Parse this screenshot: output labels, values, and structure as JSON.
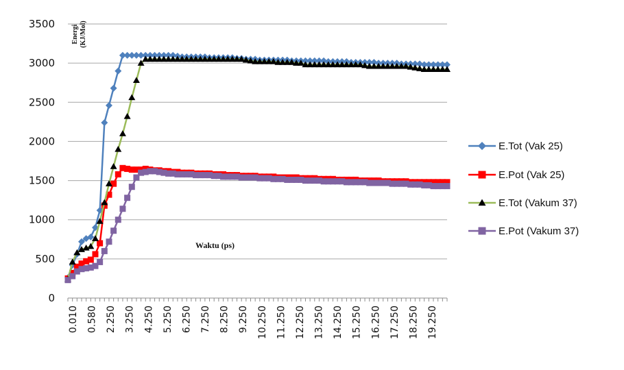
{
  "chart_data": {
    "type": "line",
    "ylabel_lines": [
      "Energi",
      "(KJ/Mol)"
    ],
    "xlabel": "Waktu (ps)",
    "ylim": [
      0,
      3500
    ],
    "yticks": [
      0,
      500,
      1000,
      1500,
      2000,
      2500,
      3000,
      3500
    ],
    "x_tick_labels": [
      "0.010",
      "0.580",
      "2.250",
      "3.250",
      "4.250",
      "5.250",
      "6.250",
      "7.250",
      "8.250",
      "9.250",
      "10.250",
      "11.250",
      "12.250",
      "13.250",
      "14.250",
      "15.250",
      "16.250",
      "17.250",
      "18.250",
      "19.250"
    ],
    "grid": "horizontal",
    "legend_position": "right",
    "series": [
      {
        "name": "E.Tot (Vak 25)",
        "color": "#4f81bd",
        "marker": "diamond",
        "values": [
          260,
          420,
          560,
          720,
          760,
          780,
          900,
          1120,
          2240,
          2460,
          2680,
          2900,
          3100,
          3100,
          3100,
          3100,
          3100,
          3100,
          3100,
          3100,
          3100,
          3100,
          3100,
          3100,
          3090,
          3080,
          3080,
          3080,
          3080,
          3080,
          3080,
          3070,
          3070,
          3070,
          3070,
          3070,
          3070,
          3060,
          3060,
          3050,
          3050,
          3050,
          3040,
          3040,
          3040,
          3040,
          3040,
          3040,
          3040,
          3030,
          3030,
          3030,
          3030,
          3030,
          3030,
          3030,
          3030,
          3020,
          3020,
          3020,
          3020,
          3020,
          3010,
          3010,
          3010,
          3010,
          3010,
          3010,
          3000,
          3000,
          3000,
          3000,
          3000,
          2990,
          2990,
          2990,
          2990,
          2990,
          2980,
          2980,
          2980,
          2980,
          2980,
          2980
        ]
      },
      {
        "name": "E.Pot (Vak 25)",
        "color": "#ff0000",
        "marker": "square",
        "values": [
          250,
          320,
          400,
          440,
          470,
          490,
          560,
          700,
          1180,
          1320,
          1460,
          1580,
          1660,
          1650,
          1640,
          1640,
          1640,
          1650,
          1640,
          1630,
          1630,
          1620,
          1620,
          1610,
          1610,
          1600,
          1600,
          1600,
          1590,
          1590,
          1590,
          1590,
          1580,
          1580,
          1580,
          1570,
          1570,
          1570,
          1560,
          1560,
          1560,
          1560,
          1550,
          1550,
          1550,
          1550,
          1540,
          1540,
          1540,
          1540,
          1540,
          1530,
          1530,
          1530,
          1530,
          1520,
          1520,
          1520,
          1520,
          1510,
          1510,
          1510,
          1510,
          1510,
          1500,
          1500,
          1500,
          1500,
          1500,
          1490,
          1490,
          1490,
          1490,
          1490,
          1490,
          1480,
          1480,
          1480,
          1480,
          1480,
          1480,
          1480,
          1480,
          1480
        ]
      },
      {
        "name": "E.Tot (Vakum 37)",
        "color": "#9bbb59",
        "marker": "triangle",
        "values": [
          240,
          460,
          580,
          620,
          640,
          660,
          760,
          980,
          1220,
          1460,
          1680,
          1900,
          2100,
          2320,
          2560,
          2780,
          3000,
          3050,
          3050,
          3050,
          3050,
          3050,
          3050,
          3050,
          3050,
          3050,
          3050,
          3050,
          3050,
          3050,
          3050,
          3050,
          3050,
          3050,
          3050,
          3050,
          3050,
          3050,
          3050,
          3040,
          3030,
          3020,
          3020,
          3020,
          3020,
          3020,
          3010,
          3010,
          3010,
          3010,
          3000,
          3000,
          2980,
          2980,
          2980,
          2980,
          2980,
          2980,
          2980,
          2980,
          2980,
          2980,
          2980,
          2980,
          2980,
          2970,
          2960,
          2960,
          2960,
          2960,
          2960,
          2960,
          2960,
          2960,
          2960,
          2950,
          2940,
          2930,
          2920,
          2920,
          2920,
          2920,
          2920,
          2920
        ]
      },
      {
        "name": "E.Pot (Vakum 37)",
        "color": "#8064a2",
        "marker": "square",
        "values": [
          230,
          280,
          340,
          370,
          380,
          390,
          410,
          460,
          600,
          720,
          860,
          1000,
          1140,
          1280,
          1420,
          1540,
          1600,
          1610,
          1620,
          1620,
          1610,
          1600,
          1590,
          1590,
          1580,
          1580,
          1580,
          1580,
          1570,
          1570,
          1570,
          1570,
          1560,
          1560,
          1550,
          1550,
          1550,
          1550,
          1540,
          1540,
          1540,
          1540,
          1530,
          1530,
          1530,
          1520,
          1520,
          1520,
          1510,
          1510,
          1510,
          1510,
          1500,
          1500,
          1500,
          1500,
          1490,
          1490,
          1490,
          1490,
          1490,
          1480,
          1480,
          1480,
          1480,
          1480,
          1470,
          1470,
          1470,
          1470,
          1470,
          1460,
          1460,
          1460,
          1460,
          1450,
          1450,
          1450,
          1440,
          1440,
          1430,
          1430,
          1430,
          1430
        ]
      }
    ]
  }
}
